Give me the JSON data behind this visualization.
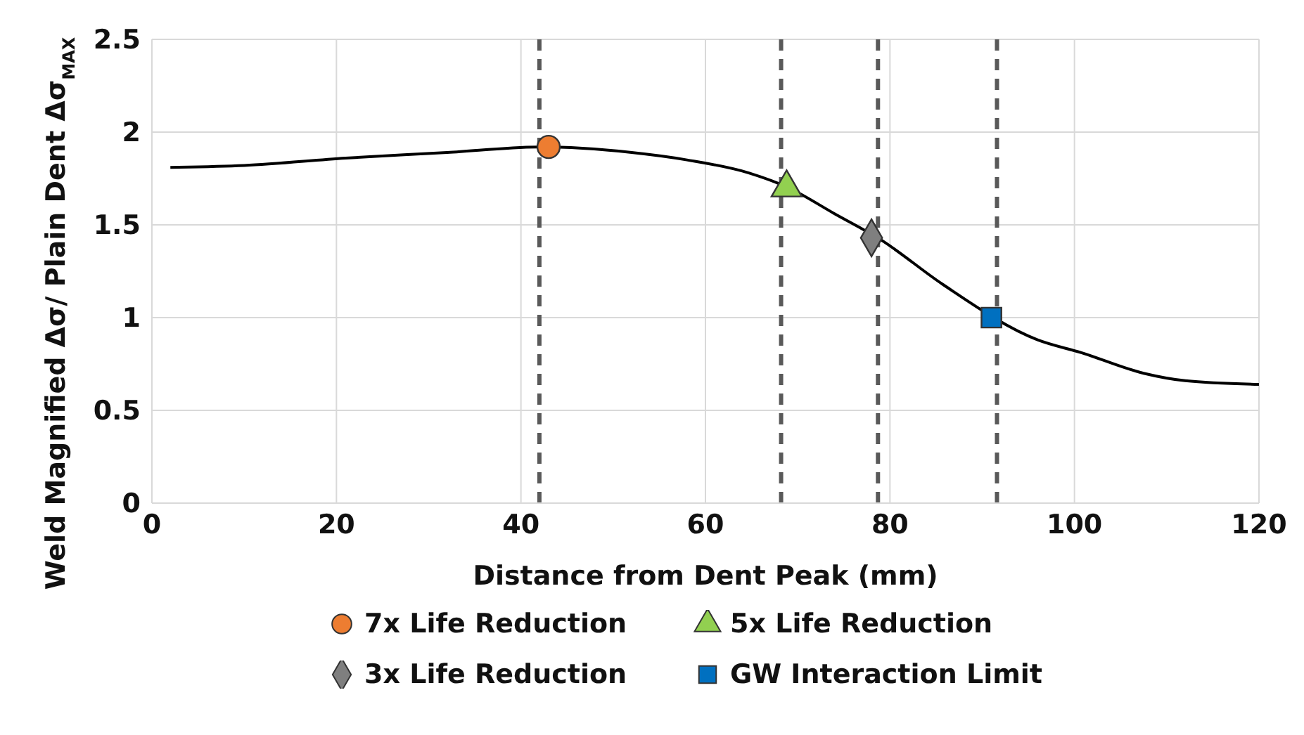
{
  "chart_data": {
    "type": "line",
    "xlabel": "Distance from Dent Peak (mm)",
    "ylabel": "Weld Magnified Δσ/ Plain Dent Δσ$_{MAX}$",
    "xlim": [
      0,
      120
    ],
    "xticks": [
      0,
      20,
      40,
      60,
      80,
      100,
      120
    ],
    "ylim": [
      0,
      2.5
    ],
    "yticks": [
      0,
      0.5,
      1,
      1.5,
      2,
      2.5
    ],
    "grid": true,
    "legend": "bottom",
    "line_style": "solid",
    "series": [
      {
        "color": "#000000",
        "marker": "none",
        "x": [
          2,
          10,
          21,
          32,
          42,
          52,
          58,
          64.7,
          69,
          74,
          79,
          85.7,
          96,
          100.8,
          107.5,
          112,
          120
        ],
        "values": [
          1.81,
          1.82,
          1.86,
          1.89,
          1.92,
          1.89,
          1.85,
          1.78,
          1.7,
          1.56,
          1.42,
          1.18,
          0.88,
          0.81,
          0.7,
          0.66,
          0.64
        ]
      },
      {
        "type": "scatter",
        "name": "7x Life Reduction",
        "color": "#ed7d31",
        "marker": "circle",
        "x": [
          43
        ],
        "values": [
          1.92
        ]
      },
      {
        "type": "scatter",
        "name": "5x Life Reduction",
        "color": "#92d050",
        "marker": "triangle",
        "x": [
          68.8
        ],
        "values": [
          1.7
        ]
      },
      {
        "type": "scatter",
        "name": "3x Life Reduction",
        "color": "#7f7f7f",
        "marker": "diamond",
        "x": [
          78
        ],
        "values": [
          1.43
        ]
      },
      {
        "type": "scatter",
        "name": "GW Interaction Limit",
        "color": "#0070c0",
        "marker": "square",
        "x": [
          91
        ],
        "values": [
          1.0
        ]
      }
    ],
    "ref_lines": [
      {
        "axis": "x",
        "value": 42,
        "color": "#595959",
        "line_style": "dashed"
      },
      {
        "axis": "x",
        "value": 68.2,
        "color": "#595959",
        "line_style": "dashed"
      },
      {
        "axis": "x",
        "value": 78.7,
        "color": "#595959",
        "line_style": "dashed"
      },
      {
        "axis": "x",
        "value": 91.6,
        "color": "#595959",
        "line_style": "dashed"
      }
    ]
  }
}
